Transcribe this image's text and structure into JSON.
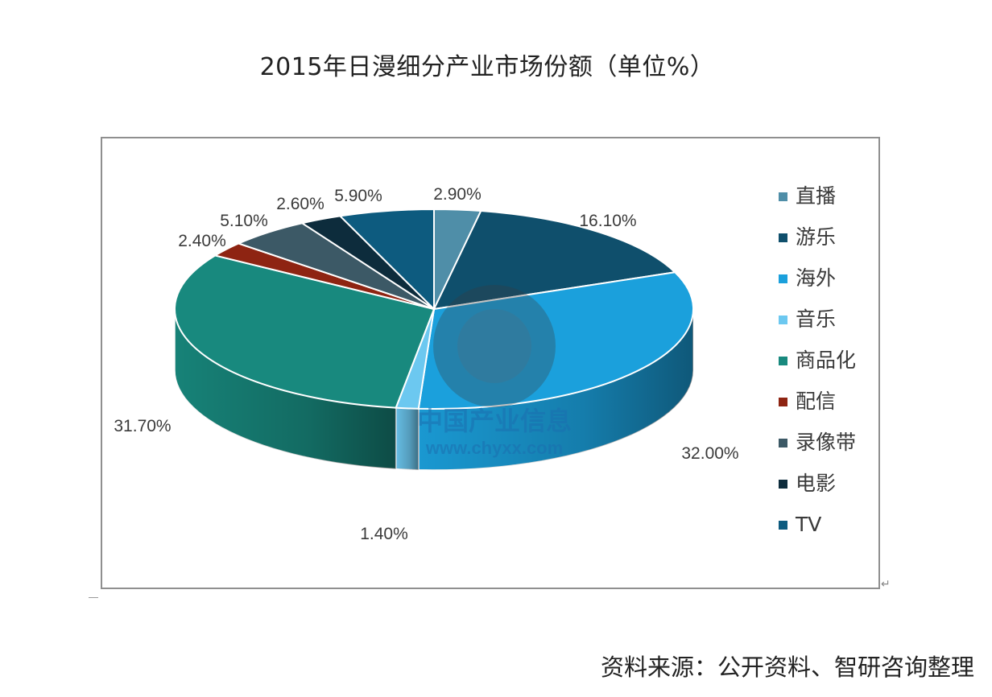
{
  "title": "2015年日漫细分产业市场份额（单位%）",
  "source": "资料来源：公开资料、智研咨询整理",
  "watermark": {
    "cn": "中国产业信息",
    "url": "www.chyxx.com"
  },
  "colors": {
    "直播": "#4f8ea8",
    "游乐": "#0f4f6c",
    "海外": "#1ba0dc",
    "音乐": "#6cc8f0",
    "商品化": "#18897e",
    "配信": "#8e2412",
    "录像带": "#3c5966",
    "电影": "#0d2c3c",
    "TV": "#0d5b7f"
  },
  "chart_data": {
    "type": "pie",
    "title": "2015年日漫细分产业市场份额（单位%）",
    "unit": "%",
    "legend_position": "right",
    "slices": [
      {
        "label": "直播",
        "value": 2.9,
        "text": "2.90%"
      },
      {
        "label": "游乐",
        "value": 16.1,
        "text": "16.10%"
      },
      {
        "label": "海外",
        "value": 32.0,
        "text": "32.00%"
      },
      {
        "label": "音乐",
        "value": 1.4,
        "text": "1.40%"
      },
      {
        "label": "商品化",
        "value": 31.7,
        "text": "31.70%"
      },
      {
        "label": "配信",
        "value": 2.4,
        "text": "2.40%"
      },
      {
        "label": "录像带",
        "value": 5.1,
        "text": "5.10%"
      },
      {
        "label": "电影",
        "value": 2.6,
        "text": "2.60%"
      },
      {
        "label": "TV",
        "value": 5.9,
        "text": "5.90%"
      }
    ]
  }
}
